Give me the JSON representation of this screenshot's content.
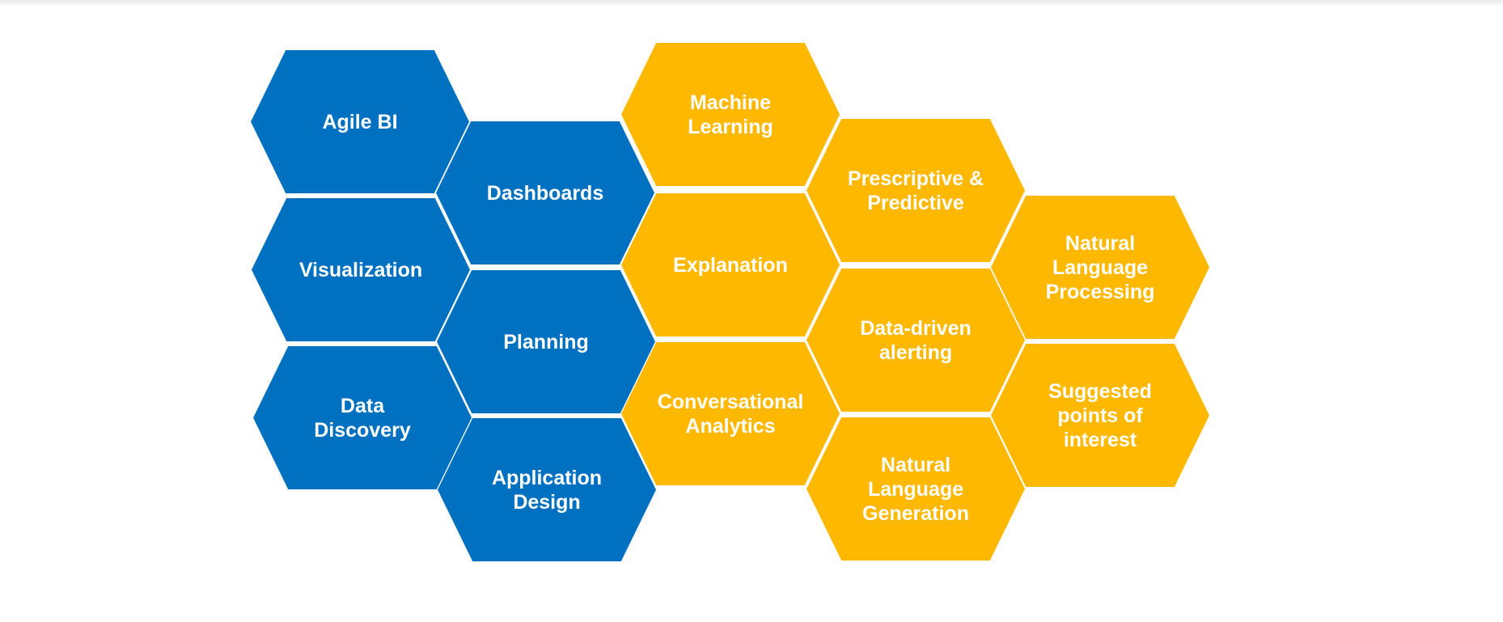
{
  "diagram": {
    "colors": {
      "blue": "#0070c0",
      "yellow": "#ffb800"
    },
    "hexagons": [
      {
        "label": "Agile  BI",
        "color": "blue"
      },
      {
        "label": "Visualization",
        "color": "blue"
      },
      {
        "label": "Data\nDiscovery",
        "color": "blue"
      },
      {
        "label": "Dashboards",
        "color": "blue"
      },
      {
        "label": "Planning",
        "color": "blue"
      },
      {
        "label": "Application\nDesign",
        "color": "blue"
      },
      {
        "label": "Machine\nLearning",
        "color": "yellow"
      },
      {
        "label": "Explanation",
        "color": "yellow"
      },
      {
        "label": "Conversational\nAnalytics",
        "color": "yellow"
      },
      {
        "label": "Prescriptive  &\nPredictive",
        "color": "yellow"
      },
      {
        "label": "Data-driven\nalerting",
        "color": "yellow"
      },
      {
        "label": "Natural\nLanguage\nGeneration",
        "color": "yellow"
      },
      {
        "label": "Natural\nLanguage\nProcessing",
        "color": "yellow"
      },
      {
        "label": "Suggested\npoints  of\ninterest",
        "color": "yellow"
      }
    ]
  }
}
